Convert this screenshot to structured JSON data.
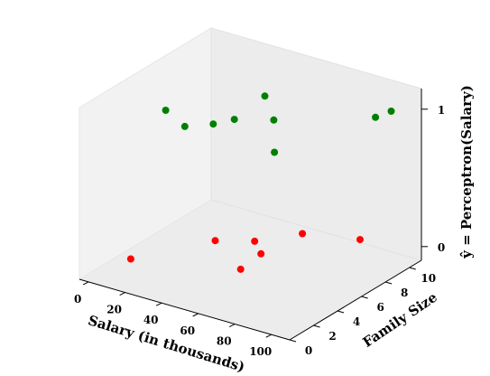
{
  "chart_data": {
    "type": "scatter",
    "projection": "3d",
    "xlabel": "Salary (in thousands)",
    "ylabel": "Family Size",
    "zlabel": "ŷ = Perceptron(Salary)",
    "xlim": [
      -5,
      110
    ],
    "ylim": [
      0,
      11
    ],
    "zlim": [
      -0.1,
      1.15
    ],
    "x_ticks": [
      0,
      20,
      40,
      60,
      80,
      100
    ],
    "y_ticks": [
      0,
      2,
      4,
      6,
      8,
      10
    ],
    "z_ticks": [
      0,
      1
    ],
    "series": [
      {
        "color": "#ff0000",
        "points": [
          {
            "x": 10,
            "y": 2,
            "z": 0
          },
          {
            "x": 30,
            "y": 6,
            "z": 0
          },
          {
            "x": 45,
            "y": 7,
            "z": 0
          },
          {
            "x": 57,
            "y": 4,
            "z": 0
          },
          {
            "x": 55,
            "y": 6,
            "z": 0
          },
          {
            "x": 58,
            "y": 9,
            "z": 0
          },
          {
            "x": 83,
            "y": 10,
            "z": 0
          }
        ]
      },
      {
        "color": "#008000",
        "points": [
          {
            "x": 16,
            "y": 4,
            "z": 1
          },
          {
            "x": 33,
            "y": 3,
            "z": 1
          },
          {
            "x": 42,
            "y": 4,
            "z": 1
          },
          {
            "x": 47,
            "y": 5,
            "z": 1
          },
          {
            "x": 62,
            "y": 6,
            "z": 1
          },
          {
            "x": 44,
            "y": 8,
            "z": 1
          },
          {
            "x": 82,
            "y": 3,
            "z": 1
          },
          {
            "x": 98,
            "y": 9,
            "z": 1
          },
          {
            "x": 100,
            "y": 10,
            "z": 1
          }
        ]
      }
    ]
  }
}
